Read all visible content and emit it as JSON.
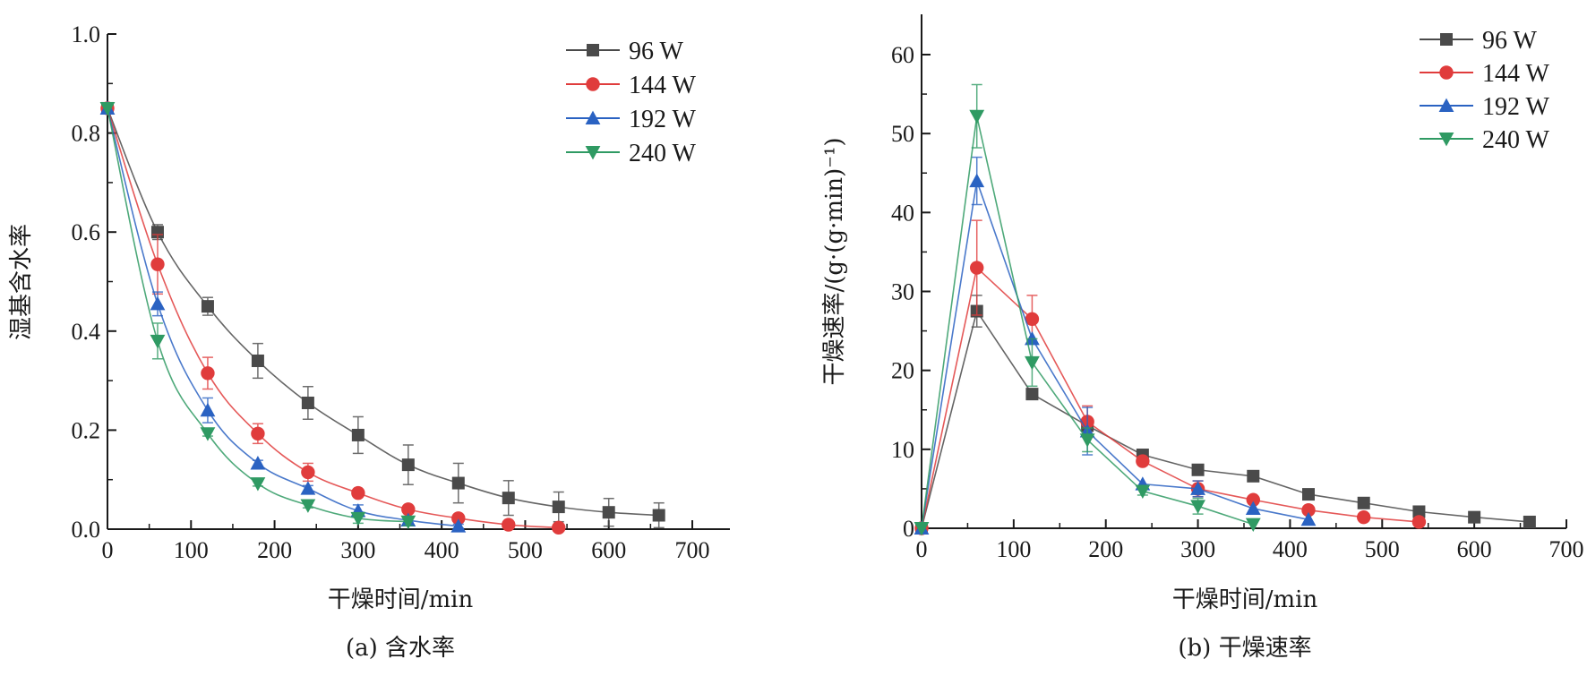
{
  "chart_data": [
    {
      "id": "a",
      "type": "line",
      "caption": "(a) 含水率",
      "title": "",
      "xlabel": "干燥时间/min",
      "ylabel": "湿基含水率",
      "xlim": [
        0,
        750
      ],
      "ylim": [
        0,
        1.0
      ],
      "xticks": [
        0,
        100,
        200,
        300,
        400,
        500,
        600,
        700
      ],
      "xtick_labels": [
        "0",
        "100",
        "200",
        "300",
        "400",
        "500",
        "600",
        "700"
      ],
      "yticks": [
        0.0,
        0.2,
        0.4,
        0.6,
        0.8,
        1.0
      ],
      "ytick_labels": [
        "0.0",
        "0.2",
        "0.4",
        "0.6",
        "0.8",
        "1.0"
      ],
      "grid": false,
      "smooth": true,
      "legend_position": "top-right",
      "series": [
        {
          "name": "96 W",
          "color": "#4a4a4a",
          "marker": "square",
          "x": [
            0,
            60,
            120,
            180,
            240,
            300,
            360,
            420,
            480,
            540,
            600,
            660
          ],
          "y": [
            0.85,
            0.6,
            0.45,
            0.34,
            0.255,
            0.19,
            0.13,
            0.093,
            0.063,
            0.045,
            0.034,
            0.028
          ],
          "err": [
            0,
            0.015,
            0.018,
            0.035,
            0.033,
            0.037,
            0.04,
            0.04,
            0.035,
            0.03,
            0.028,
            0.025
          ]
        },
        {
          "name": "144 W",
          "color": "#e03c3c",
          "marker": "circle",
          "x": [
            0,
            60,
            120,
            180,
            240,
            300,
            360,
            420,
            480,
            540
          ],
          "y": [
            0.85,
            0.535,
            0.315,
            0.193,
            0.115,
            0.073,
            0.04,
            0.022,
            0.009,
            0.003
          ],
          "err": [
            0,
            0.06,
            0.032,
            0.02,
            0.018,
            0.005,
            0.005,
            0.005,
            0.005,
            0.003
          ]
        },
        {
          "name": "192 W",
          "color": "#2a62c2",
          "marker": "triangle-up",
          "x": [
            0,
            60,
            120,
            180,
            240,
            300,
            360,
            420
          ],
          "y": [
            0.85,
            0.455,
            0.24,
            0.133,
            0.082,
            0.037,
            0.018,
            0.006
          ],
          "err": [
            0,
            0.024,
            0.025,
            0.006,
            0.006,
            0.012,
            0.006,
            0.004
          ]
        },
        {
          "name": "240 W",
          "color": "#2f9a63",
          "marker": "triangle-down",
          "x": [
            0,
            60,
            120,
            180,
            240,
            300,
            360
          ],
          "y": [
            0.85,
            0.38,
            0.193,
            0.092,
            0.048,
            0.022,
            0.015
          ],
          "err": [
            0,
            0.036,
            0.005,
            0.005,
            0.005,
            0.01,
            0.008
          ]
        }
      ]
    },
    {
      "id": "b",
      "type": "line",
      "caption": "(b) 干燥速率",
      "title": "",
      "xlabel": "干燥时间/min",
      "ylabel": "干燥速率/(g·(g·min)⁻¹)",
      "xlim": [
        0,
        700
      ],
      "ylim": [
        0,
        65
      ],
      "xticks": [
        0,
        100,
        200,
        300,
        400,
        500,
        600,
        700
      ],
      "xtick_labels": [
        "0",
        "100",
        "200",
        "300",
        "400",
        "500",
        "600",
        "700"
      ],
      "yticks": [
        0,
        10,
        20,
        30,
        40,
        50,
        60
      ],
      "ytick_labels": [
        "0",
        "10",
        "20",
        "30",
        "40",
        "50",
        "60"
      ],
      "grid": false,
      "smooth": false,
      "legend_position": "top-right",
      "series": [
        {
          "name": "96 W",
          "color": "#4a4a4a",
          "marker": "square",
          "x": [
            0,
            60,
            120,
            180,
            240,
            300,
            360,
            420,
            480,
            540,
            600,
            660
          ],
          "y": [
            0,
            27.5,
            17,
            13,
            9.3,
            7.4,
            6.6,
            4.3,
            3.2,
            2.1,
            1.4,
            0.8
          ],
          "err": [
            0,
            2,
            0,
            0.5,
            0,
            0,
            0,
            0,
            0,
            0,
            0,
            0
          ]
        },
        {
          "name": "144 W",
          "color": "#e03c3c",
          "marker": "circle",
          "x": [
            0,
            60,
            120,
            180,
            240,
            300,
            360,
            420,
            480,
            540
          ],
          "y": [
            0,
            33,
            26.5,
            13.5,
            8.5,
            5,
            3.6,
            2.3,
            1.4,
            0.8
          ],
          "err": [
            0,
            6,
            3,
            2,
            0.5,
            1,
            0,
            0,
            0,
            0
          ]
        },
        {
          "name": "192 W",
          "color": "#2a62c2",
          "marker": "triangle-up",
          "x": [
            0,
            60,
            120,
            180,
            240,
            300,
            360,
            420
          ],
          "y": [
            0,
            44,
            24,
            12.3,
            5.6,
            5,
            2.5,
            1.1
          ],
          "err": [
            0,
            3,
            0,
            3,
            0,
            1,
            0,
            0
          ]
        },
        {
          "name": "240 W",
          "color": "#2f9a63",
          "marker": "triangle-down",
          "x": [
            0,
            60,
            120,
            180,
            240,
            300,
            360
          ],
          "y": [
            0,
            52.2,
            21,
            11.2,
            4.7,
            2.8,
            0.5
          ],
          "err": [
            0,
            4,
            3,
            1.5,
            0.5,
            1,
            0
          ]
        }
      ]
    }
  ]
}
